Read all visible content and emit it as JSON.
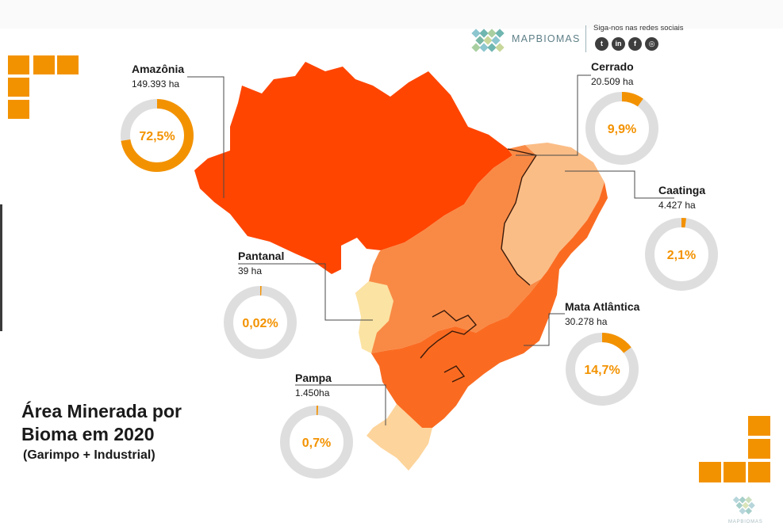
{
  "header": {
    "logo_text": "MAPBIOMAS",
    "social_title": "Siga-nos nas redes sociais",
    "social": [
      {
        "icon": "twitter-icon",
        "glyph": "t"
      },
      {
        "icon": "linkedin-icon",
        "glyph": "in"
      },
      {
        "icon": "facebook-icon",
        "glyph": "f"
      },
      {
        "icon": "instagram-icon",
        "glyph": "◎"
      }
    ]
  },
  "footer": {
    "logo_text": "MAPBIOMAS"
  },
  "title": {
    "line1": "Área Minerada por",
    "line2": "Bioma em 2020",
    "subtitle": "(Garimpo + Industrial)"
  },
  "colors": {
    "accent": "#f39200",
    "ring_track": "#dedede",
    "amazonia": "#ff4500",
    "cerrado": "#f98a45",
    "caatinga": "#fbbd86",
    "pantanal": "#fbe3a3",
    "mata_atlantica": "#fa6b21",
    "pampa": "#fdd49b"
  },
  "chart_data": {
    "type": "pie",
    "categories": [
      "Amazônia",
      "Cerrado",
      "Caatinga",
      "Pantanal",
      "Mata Atlântica",
      "Pampa"
    ],
    "values": [
      72.5,
      9.9,
      2.1,
      0.02,
      14.7,
      0.7
    ],
    "series": [
      {
        "name": "Amazônia",
        "area_label": "149.393 ha",
        "percent": 72.5,
        "percent_label": "72,5%"
      },
      {
        "name": "Cerrado",
        "area_label": "20.509 ha",
        "percent": 9.9,
        "percent_label": "9,9%"
      },
      {
        "name": "Caatinga",
        "area_label": "4.427 ha",
        "percent": 2.1,
        "percent_label": "2,1%"
      },
      {
        "name": "Pantanal",
        "area_label": "39 ha",
        "percent": 0.02,
        "percent_label": "0,02%"
      },
      {
        "name": "Mata Atlântica",
        "area_label": "30.278 ha",
        "percent": 14.7,
        "percent_label": "14,7%"
      },
      {
        "name": "Pampa",
        "area_label": "1.450ha",
        "percent": 0.7,
        "percent_label": "0,7%"
      }
    ],
    "title": "Área Minerada por Bioma em 2020",
    "subtitle": "(Garimpo + Industrial)"
  }
}
